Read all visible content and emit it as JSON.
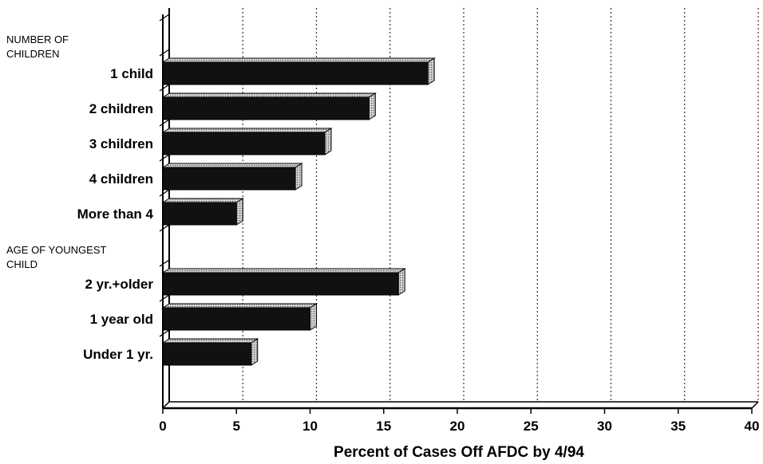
{
  "chart_data": {
    "type": "bar",
    "orientation": "horizontal",
    "xlabel": "Percent of Cases Off AFDC by 4/94",
    "xlim": [
      0,
      40
    ],
    "xticks": [
      0,
      5,
      10,
      15,
      20,
      25,
      30,
      35,
      40
    ],
    "grid": "vertical dotted lines",
    "colors": {
      "bar": "#111111",
      "bar_top": "#bdbdbd"
    },
    "groups": [
      {
        "label": "NUMBER OF CHILDREN",
        "label_lines": [
          "NUMBER OF",
          "CHILDREN"
        ],
        "categories": [
          "1 child",
          "2 children",
          "3 children",
          "4 children",
          "More than 4"
        ],
        "values": [
          18,
          14,
          11,
          9,
          5
        ]
      },
      {
        "label": "AGE OF YOUNGEST CHILD",
        "label_lines": [
          "AGE OF YOUNGEST",
          "CHILD"
        ],
        "categories": [
          "2 yr.+older",
          "1 year old",
          "Under 1 yr."
        ],
        "values": [
          16,
          10,
          6
        ]
      }
    ]
  }
}
